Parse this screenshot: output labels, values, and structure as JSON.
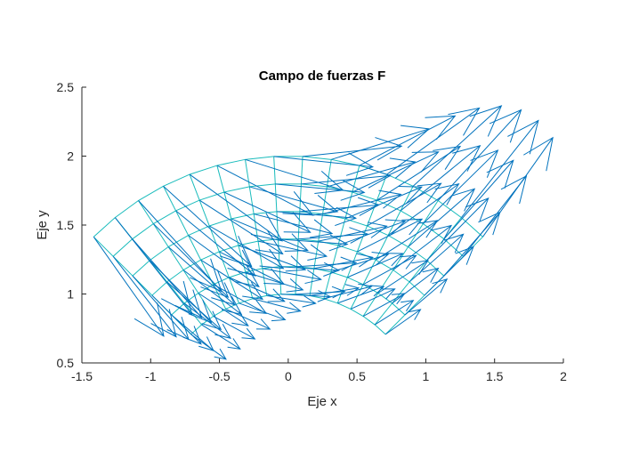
{
  "chart_data": {
    "type": "quiver",
    "title": "Campo de fuerzas F",
    "xlabel": "Eje x",
    "ylabel": "Eje y",
    "xlim": [
      -1.5,
      2
    ],
    "ylim": [
      0.5,
      2.5
    ],
    "xticks": [
      -1.5,
      -1,
      -0.5,
      0,
      0.5,
      1,
      1.5,
      2
    ],
    "xtick_labels": [
      "-1.5",
      "-1",
      "-0.5",
      "0",
      "0.5",
      "1",
      "1.5",
      "2"
    ],
    "yticks": [
      0.5,
      1,
      1.5,
      2,
      2.5
    ],
    "ytick_labels": [
      "0.5",
      "1",
      "1.5",
      "2",
      "2.5"
    ],
    "grid": false,
    "legend": "none",
    "mesh": {
      "coordinates": "polar",
      "r_values": [
        1.0,
        1.2,
        1.4,
        1.6,
        1.8,
        2.0
      ],
      "theta_start_deg": 45,
      "theta_end_deg": 135,
      "theta_divisions": 15,
      "color": "#1abcbc"
    },
    "vector_field": {
      "points": "mesh nodes",
      "components": "F = (y, x·y) at each (x, y)",
      "arrow_scale": 0.36,
      "color": "#0072bd"
    }
  }
}
